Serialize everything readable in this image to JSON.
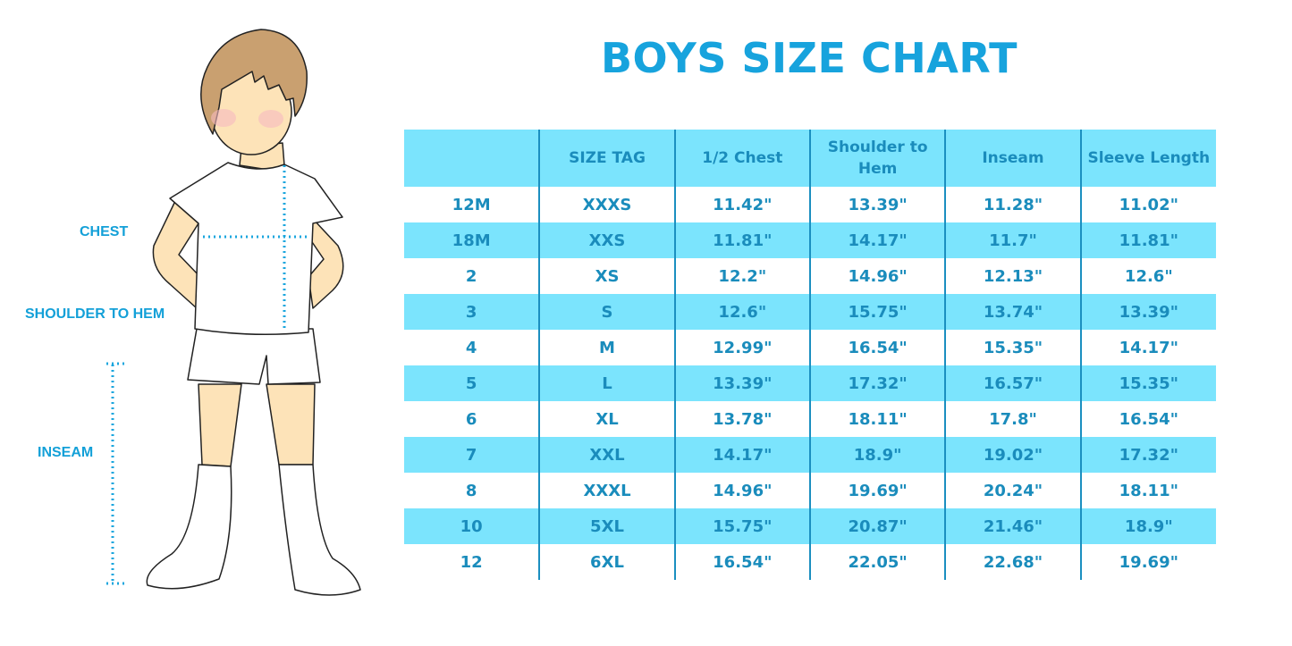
{
  "title": "BOYS SIZE CHART",
  "labels": {
    "chest": "CHEST",
    "shoulder_to_hem": "SHOULDER TO HEM",
    "inseam": "INSEAM"
  },
  "colors": {
    "accent": "#17a3dd",
    "row_highlight": "#7be4fd",
    "text": "#1a8cbc"
  },
  "table": {
    "headers": [
      "",
      "SIZE TAG",
      "1/2 Chest",
      "Shoulder to Hem",
      "Inseam",
      "Sleeve Length"
    ],
    "rows": [
      [
        "12M",
        "XXXS",
        "11.42\"",
        "13.39\"",
        "11.28\"",
        "11.02\""
      ],
      [
        "18M",
        "XXS",
        "11.81\"",
        "14.17\"",
        "11.7\"",
        "11.81\""
      ],
      [
        "2",
        "XS",
        "12.2\"",
        "14.96\"",
        "12.13\"",
        "12.6\""
      ],
      [
        "3",
        "S",
        "12.6\"",
        "15.75\"",
        "13.74\"",
        "13.39\""
      ],
      [
        "4",
        "M",
        "12.99\"",
        "16.54\"",
        "15.35\"",
        "14.17\""
      ],
      [
        "5",
        "L",
        "13.39\"",
        "17.32\"",
        "16.57\"",
        "15.35\""
      ],
      [
        "6",
        "XL",
        "13.78\"",
        "18.11\"",
        "17.8\"",
        "16.54\""
      ],
      [
        "7",
        "XXL",
        "14.17\"",
        "18.9\"",
        "19.02\"",
        "17.32\""
      ],
      [
        "8",
        "XXXL",
        "14.96\"",
        "19.69\"",
        "20.24\"",
        "18.11\""
      ],
      [
        "10",
        "5XL",
        "15.75\"",
        "20.87\"",
        "21.46\"",
        "18.9\""
      ],
      [
        "12",
        "6XL",
        "16.54\"",
        "22.05\"",
        "22.68\"",
        "19.69\""
      ]
    ]
  }
}
